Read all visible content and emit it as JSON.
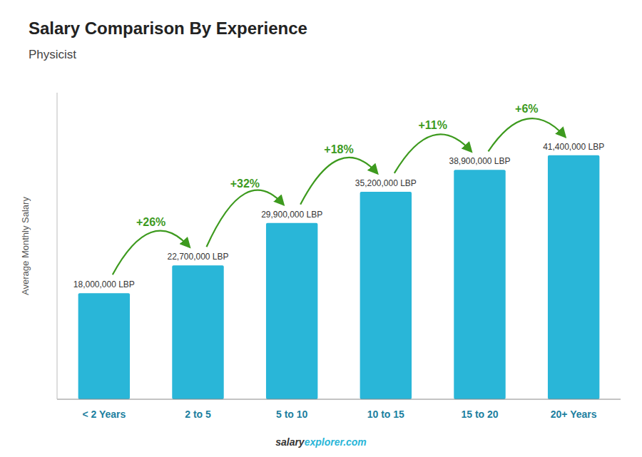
{
  "chart_data": {
    "type": "bar",
    "title": "Salary Comparison By Experience",
    "subtitle": "Physicist",
    "ylabel": "Average Monthly Salary",
    "categories": [
      "< 2 Years",
      "2 to 5",
      "5 to 10",
      "10 to 15",
      "15 to 20",
      "20+ Years"
    ],
    "values": [
      18000000,
      22700000,
      29900000,
      35200000,
      38900000,
      41400000
    ],
    "value_labels": [
      "18,000,000 LBP",
      "22,700,000 LBP",
      "29,900,000 LBP",
      "35,200,000 LBP",
      "38,900,000 LBP",
      "41,400,000 LBP"
    ],
    "data_labels": true,
    "annotations": [
      "+26%",
      "+32%",
      "+18%",
      "+11%",
      "+6%"
    ],
    "footer": [
      "salary",
      "explorer.com"
    ],
    "color": "#29b6d8",
    "ylim": [
      0,
      52000000
    ],
    "grid": false,
    "tick_labels": "x"
  }
}
